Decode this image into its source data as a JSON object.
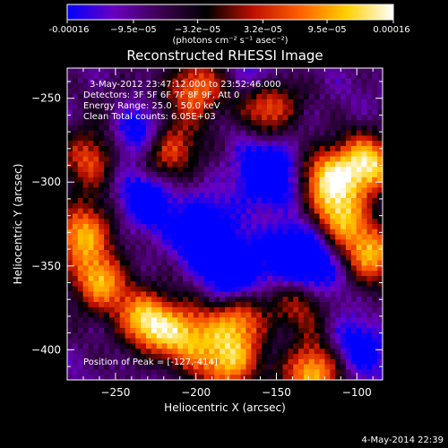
{
  "colorbar": {
    "tick_labels": [
      "-0.00016",
      "−9.5e−05",
      "−3.2e−05",
      "3.2e−05",
      "9.5e−05",
      "0.00016"
    ],
    "tick_values": [
      -0.00016,
      -9.5e-05,
      -3.2e-05,
      3.2e-05,
      9.5e-05,
      0.00016
    ],
    "range": [
      -0.00016,
      0.00016
    ],
    "units_label": "(photons cm⁻² s⁻¹ asec⁻²)"
  },
  "colors": {
    "background": "#000000",
    "colormap": [
      "#0000ff",
      "#6a00c0",
      "#3c0050",
      "#000000",
      "#c01000",
      "#ff6000",
      "#ffd000",
      "#ffffff"
    ]
  },
  "chart_data": {
    "type": "heatmap",
    "title": "Reconstructed RHESSI Image",
    "xlabel": "Heliocentric X (arcsec)",
    "ylabel": "Heliocentric Y (arcsec)",
    "xlim": [
      -280,
      -84
    ],
    "ylim": [
      -418,
      -232
    ],
    "x_ticks": [
      -250,
      -200,
      -150,
      -100
    ],
    "y_ticks": [
      -250,
      -300,
      -350,
      -400
    ],
    "x_tick_labels": [
      "−250",
      "−200",
      "−150",
      "−100"
    ],
    "y_tick_labels": [
      "−250",
      "−300",
      "−350",
      "−400"
    ],
    "annotations": [
      "3-May-2012 23:47:12.000 to 23:52:46.000",
      "Detectors: 3F 5F 6F 7F 8F 9F, Att 0",
      "Energy Range: 25.0 - 50.0 keV",
      "Clean    Total counts: 6.05E+03"
    ],
    "peak_label": "Position of Peak = [-127,-414]",
    "peak_position": [
      -127,
      -414
    ],
    "bright_regions": [
      {
        "x": -270,
        "y": -330,
        "intensity": 0.9
      },
      {
        "x": -230,
        "y": -383,
        "intensity": 1.0
      },
      {
        "x": -205,
        "y": -392,
        "intensity": 0.85
      },
      {
        "x": -180,
        "y": -408,
        "intensity": 0.9
      },
      {
        "x": -127,
        "y": -414,
        "intensity": 1.0
      },
      {
        "x": -118,
        "y": -297,
        "intensity": 0.9
      },
      {
        "x": -93,
        "y": -290,
        "intensity": 1.0
      },
      {
        "x": -112,
        "y": -323,
        "intensity": 0.85
      },
      {
        "x": -92,
        "y": -345,
        "intensity": 0.9
      },
      {
        "x": -155,
        "y": -252,
        "intensity": 0.95
      },
      {
        "x": -200,
        "y": -245,
        "intensity": 0.8
      },
      {
        "x": -217,
        "y": -282,
        "intensity": 0.75
      },
      {
        "x": -265,
        "y": -285,
        "intensity": 0.7
      },
      {
        "x": -172,
        "y": -380,
        "intensity": 0.8
      },
      {
        "x": -130,
        "y": -370,
        "intensity": 0.75
      },
      {
        "x": -245,
        "y": -260,
        "intensity": 0.5
      },
      {
        "x": -260,
        "y": -360,
        "intensity": 0.85
      }
    ],
    "dark_regions": [
      {
        "x": -240,
        "y": -268,
        "intensity": -0.9
      },
      {
        "x": -155,
        "y": -295,
        "intensity": -0.85
      },
      {
        "x": -135,
        "y": -342,
        "intensity": -0.9
      },
      {
        "x": -195,
        "y": -330,
        "intensity": -0.7
      },
      {
        "x": -175,
        "y": -355,
        "intensity": -0.8
      },
      {
        "x": -120,
        "y": -360,
        "intensity": -0.6
      },
      {
        "x": -230,
        "y": -310,
        "intensity": -0.6
      },
      {
        "x": -100,
        "y": -400,
        "intensity": -0.5
      },
      {
        "x": -160,
        "y": -240,
        "intensity": -0.5
      }
    ]
  },
  "footer": {
    "date": "4-May-2014 22:39"
  }
}
